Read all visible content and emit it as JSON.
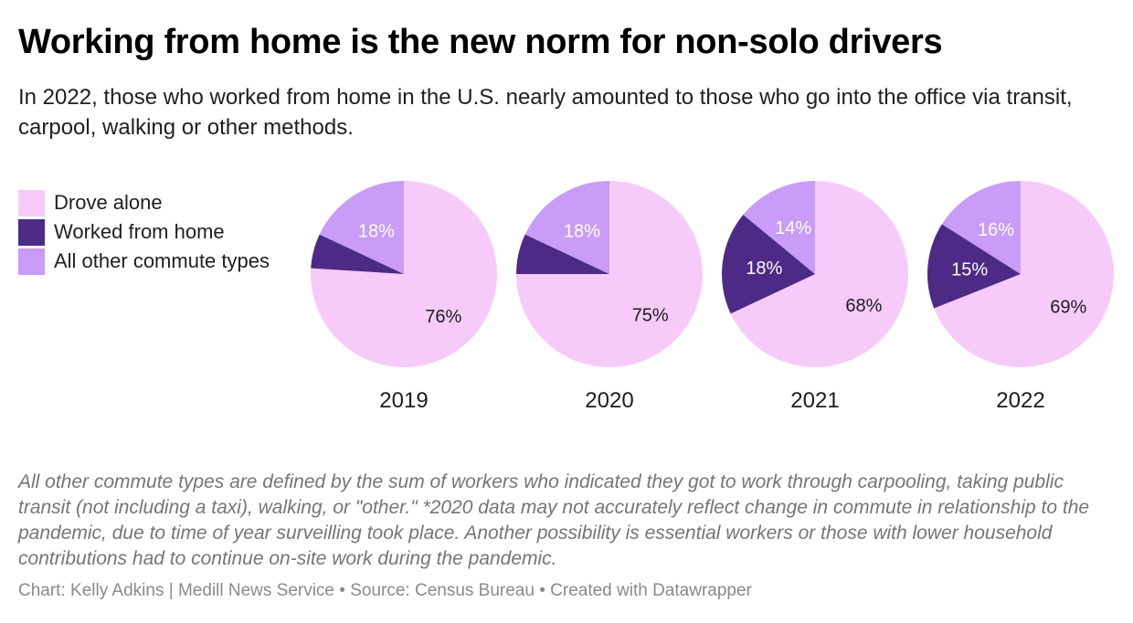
{
  "title": "Working from home is the new norm for non-solo drivers",
  "subtitle": "In 2022, those who worked from home in the U.S. nearly amounted to those who go into the office via transit, carpool, walking or other methods.",
  "notes": "All other commute types are defined by the sum of workers who indicated they got to work through carpooling, taking public transit (not including a taxi), walking, or \"other.\" *2020 data may not accurately reflect change in commute in relationship to the pandemic, due to time of year surveilling took place. Another possibility is essential workers or those with lower household contributions had to continue on-site work during the pandemic.",
  "footer": "Chart: Kelly Adkins | Medill News Service • Source: Census Bureau • Created with Datawrapper",
  "colors": {
    "drove_alone": "#f6cbfa",
    "worked_from_home": "#4d2a86",
    "other": "#c99cf7"
  },
  "legend": [
    {
      "label": "Drove alone",
      "color": "#f6cbfa"
    },
    {
      "label": "Worked from home",
      "color": "#4d2a86"
    },
    {
      "label": "All other commute types",
      "color": "#c99cf7"
    }
  ],
  "chart_data": {
    "type": "pie",
    "series_names": [
      "Drove alone",
      "Worked from home",
      "All other commute types"
    ],
    "pies": [
      {
        "year": "2019",
        "values": [
          76,
          6,
          18
        ],
        "labels": [
          "76%",
          "",
          "18%"
        ]
      },
      {
        "year": "2020",
        "values": [
          75,
          7,
          18
        ],
        "labels": [
          "75%",
          "",
          "18%"
        ]
      },
      {
        "year": "2021",
        "values": [
          68,
          18,
          14
        ],
        "labels": [
          "68%",
          "18%",
          "14%"
        ]
      },
      {
        "year": "2022",
        "values": [
          69,
          15,
          16
        ],
        "labels": [
          "69%",
          "15%",
          "16%"
        ]
      }
    ],
    "legend_position": "left"
  }
}
